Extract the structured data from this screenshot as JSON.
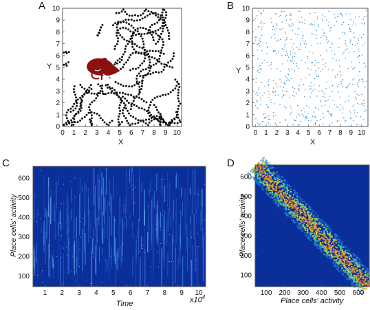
{
  "panels": {
    "a": {
      "letter": "A"
    },
    "b": {
      "letter": "B"
    },
    "c": {
      "letter": "C"
    },
    "d": {
      "letter": "D"
    }
  },
  "chart_data": [
    {
      "panel": "A",
      "type": "scatter",
      "description": "trajectory",
      "xlabel": "X",
      "ylabel": "Y",
      "xlim": [
        0,
        10.4
      ],
      "ylim": [
        0,
        10
      ],
      "xticks": [
        "0",
        "1",
        "2",
        "3",
        "4",
        "5",
        "6",
        "7",
        "8",
        "9",
        "10"
      ],
      "yticks": [
        "0",
        "1",
        "2",
        "3",
        "4",
        "5",
        "6",
        "7",
        "8",
        "9",
        "10"
      ],
      "marker_color": "#111111",
      "icon": "rat-icon",
      "icon_color": "#8b1010"
    },
    {
      "panel": "B",
      "type": "scatter",
      "xlabel": "X",
      "ylabel": "Y",
      "xlim": [
        -0.3,
        10.6
      ],
      "ylim": [
        0,
        10
      ],
      "xticks": [
        "0",
        "1",
        "2",
        "3",
        "4",
        "5",
        "6",
        "7",
        "8",
        "9",
        "10"
      ],
      "yticks": [
        "0",
        "1",
        "2",
        "3",
        "4",
        "5",
        "6",
        "7",
        "8",
        "9",
        "10"
      ],
      "marker_color": "#3a8fd1",
      "point_count": 600
    },
    {
      "panel": "C",
      "type": "heatmap",
      "xlabel": "Time",
      "ylabel": "Place cells' activity",
      "x_multiplier": "x10",
      "x_multiplier_exp": "4",
      "xlim": [
        0.3,
        10.4
      ],
      "ylim": [
        45,
        660
      ],
      "xticks": [
        "1",
        "2",
        "3",
        "4",
        "5",
        "6",
        "7",
        "8",
        "9",
        "10"
      ],
      "yticks": [
        "100",
        "200",
        "300",
        "400",
        "500",
        "600"
      ],
      "background_color": "#0b2f9a"
    },
    {
      "panel": "D",
      "type": "heatmap",
      "xlabel": "Place cells' activity",
      "ylabel": "Place cells' activity",
      "xlim": [
        40,
        660
      ],
      "ylim": [
        40,
        660
      ],
      "xticks": [
        "100",
        "200",
        "300",
        "400",
        "500",
        "600"
      ],
      "yticks": [
        "100",
        "200",
        "300",
        "400",
        "500",
        "600"
      ],
      "background_color": "#0b2f9a",
      "diagonal_band": true
    }
  ]
}
